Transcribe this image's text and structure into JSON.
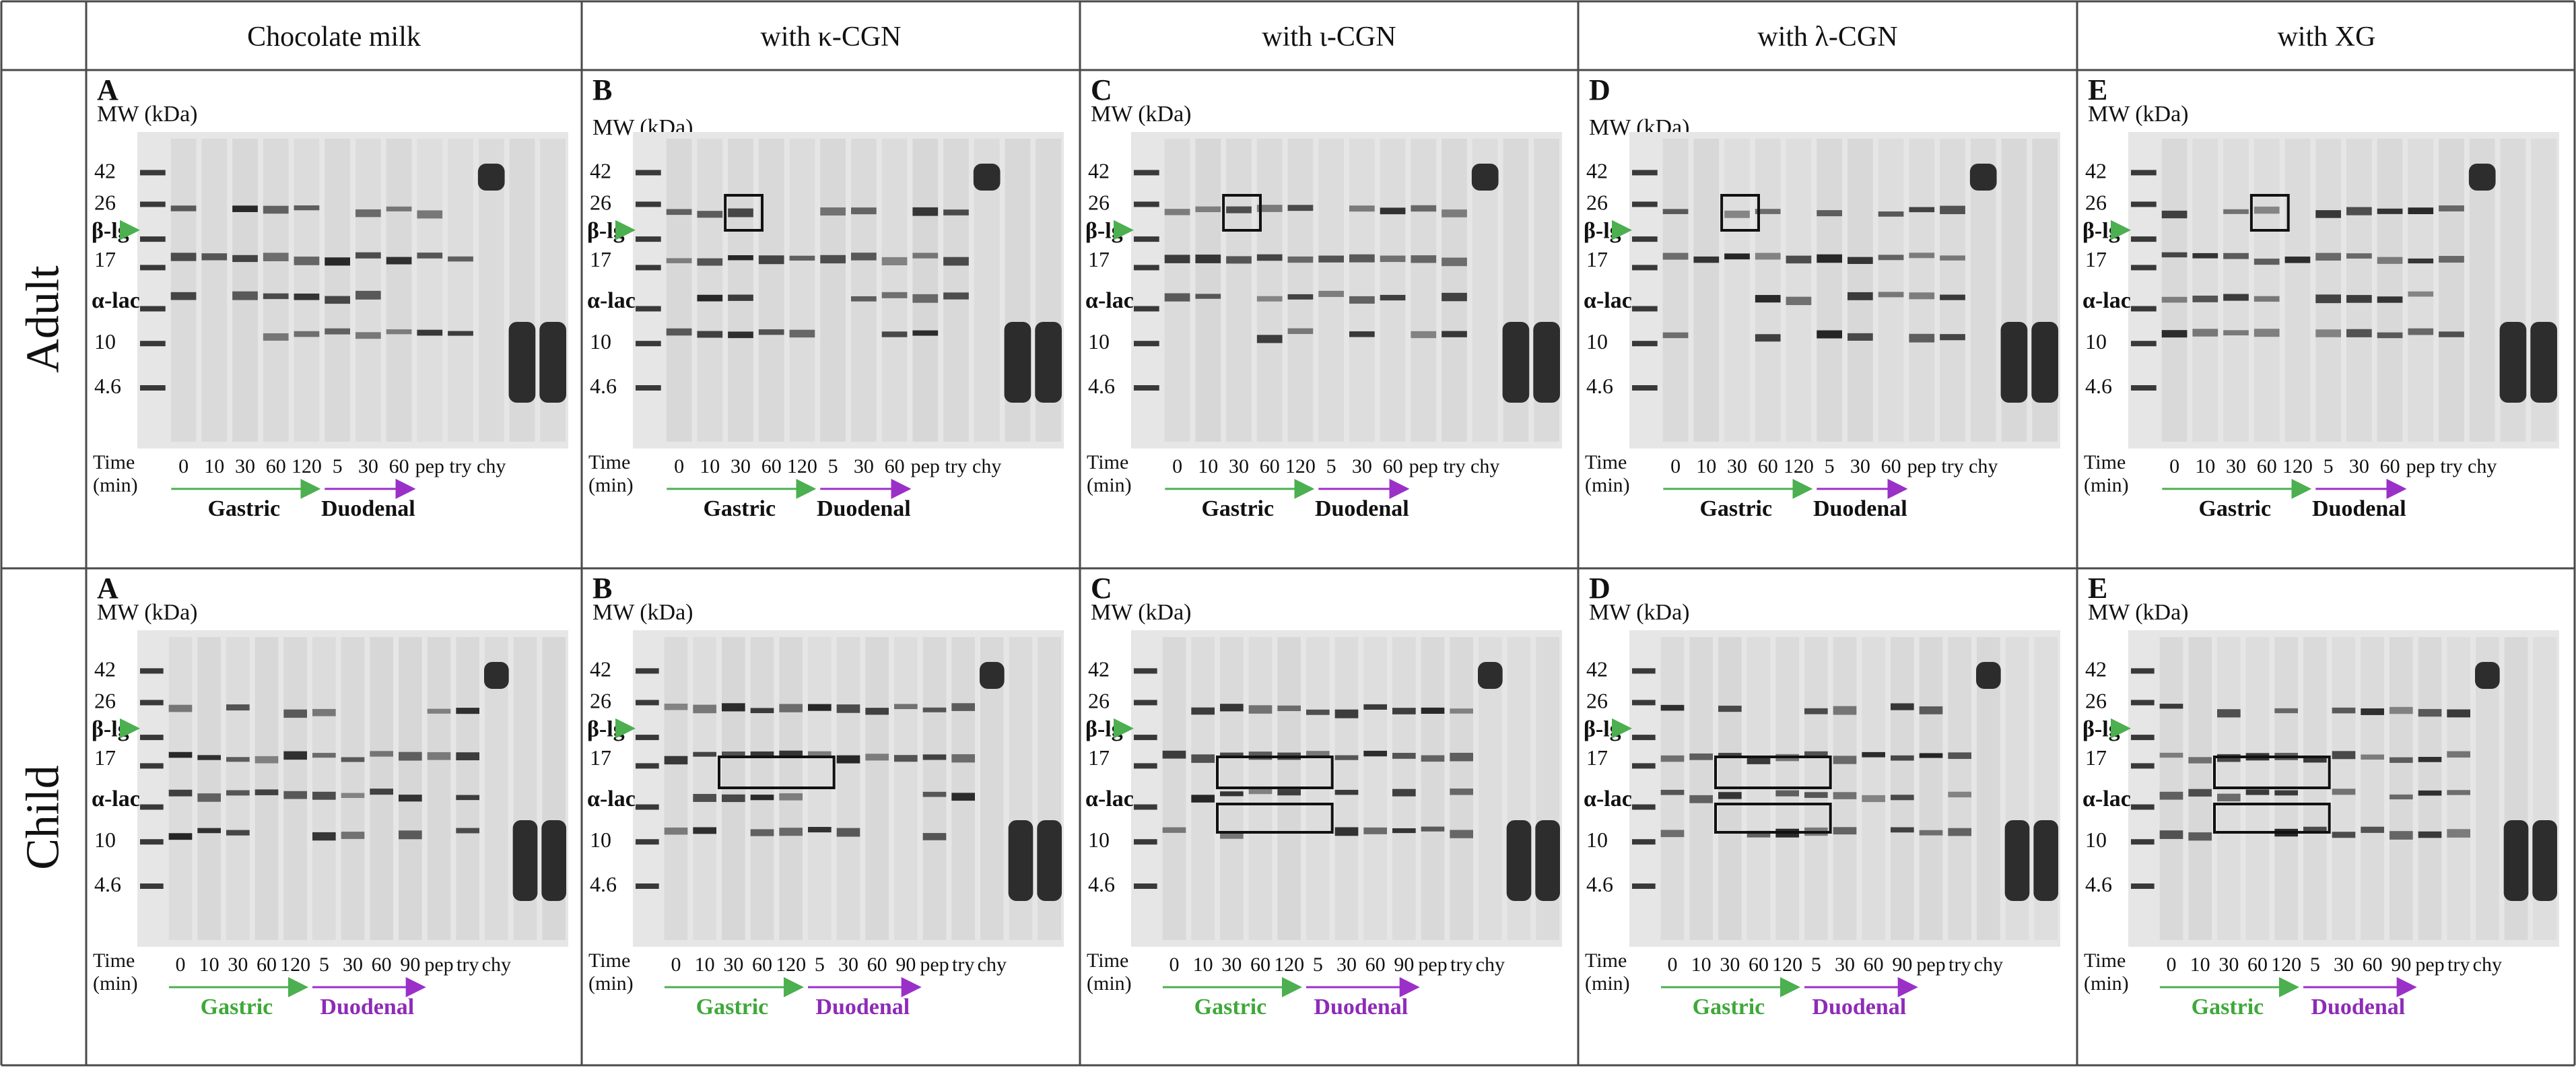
{
  "columns": [
    "Chocolate milk",
    "with κ-CGN",
    "with ι-CGN",
    "with λ-CGN",
    "with XG"
  ],
  "rows": [
    "Adult",
    "Child"
  ],
  "panel_letters": [
    "A",
    "B",
    "C",
    "D",
    "E"
  ],
  "mw_label": "MW (kDa)",
  "mw_markers": [
    "42",
    "26",
    "17",
    "10",
    "4.6"
  ],
  "protein_labels": {
    "blg": "β-lg",
    "alac": "α-lac"
  },
  "time_label_line1": "Time",
  "time_label_line2": "(min)",
  "gastric_times": [
    "0",
    "10",
    "30",
    "60",
    "120"
  ],
  "duodenal_times_adult": [
    "5",
    "30",
    "60"
  ],
  "duodenal_times_child": [
    "5",
    "30",
    "60",
    "90"
  ],
  "enzymes": [
    "pep",
    "try",
    "chy"
  ],
  "phases": {
    "gastric": "Gastric",
    "duodenal": "Duodenal"
  },
  "colors": {
    "gastric_arrow": "#4caf50",
    "duodenal_arrow": "#9b30c8",
    "gastric_text_child": "#3fa83a",
    "duodenal_text_child": "#8e2bb8",
    "gel_background": "#e6e6e6",
    "band": "#1a1a1a"
  }
}
